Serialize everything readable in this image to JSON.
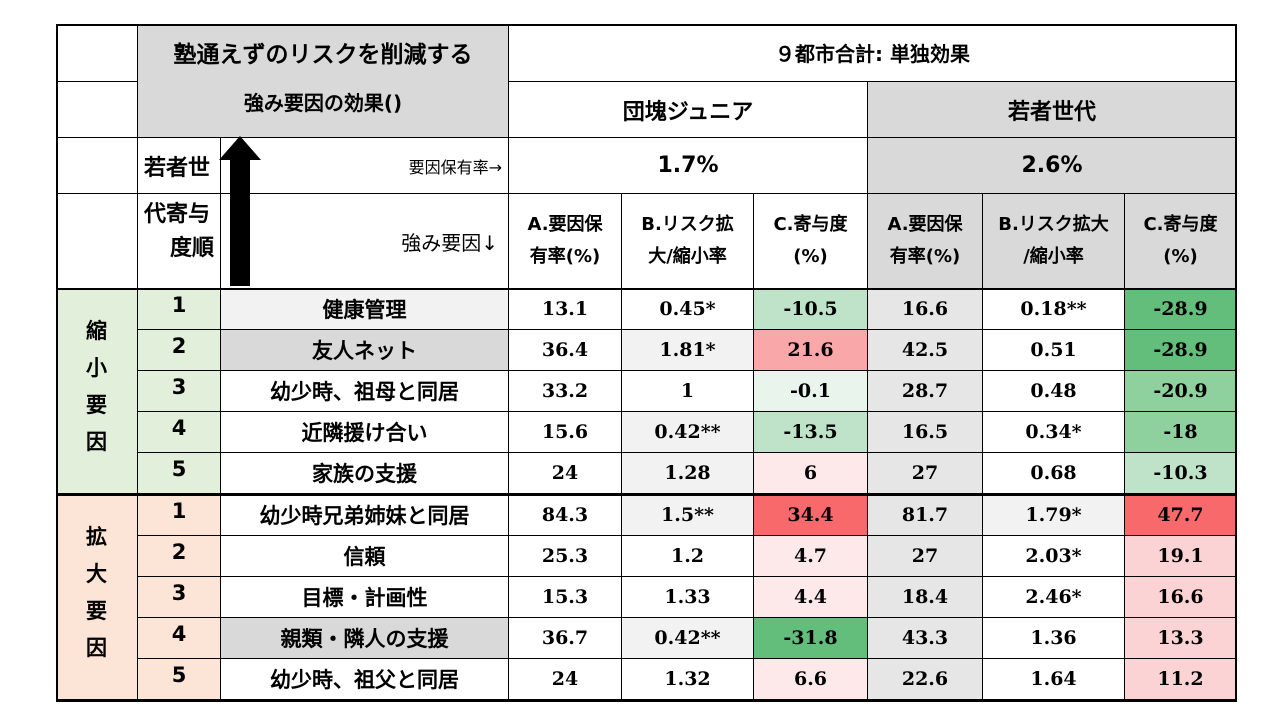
{
  "header": {
    "title_line1": "塾通えずのリスクを削減する",
    "title_line2": "強み要因の効果()",
    "region": "９都市合計: 単独効果",
    "group_a": "団塊ジュニア",
    "group_b": "若者世代",
    "rank_label_top": "若者世",
    "rank_label_bottom": [
      "代寄与",
      "度順"
    ],
    "factor_rate_label": "要因保有率→",
    "strength_label": "強み要因↓",
    "rate_a": "1.7%",
    "rate_b": "2.6%",
    "cols": {
      "a_l1": "A.要因保",
      "a_l2": "有率(%)",
      "b_l1": "B.リスク拡",
      "b_l2": "大/縮小率",
      "c_l1": "C.寄与度",
      "c_l2": "(%)",
      "d_l1": "A.要因保",
      "d_l2": "有率(%)",
      "e_l1": "B.リスク拡大",
      "e_l2": "/縮小率",
      "f_l1": "C.寄与度",
      "f_l2": "(%)"
    }
  },
  "groups": {
    "shrink": [
      "縮",
      "小",
      "要",
      "因"
    ],
    "expand": [
      "拡",
      "大",
      "要",
      "因"
    ]
  },
  "colors": {
    "green_strong": "#63be7b",
    "green_mid": "#8ed09e",
    "green_light": "#bfe3c8",
    "green_pale": "#e9f5ec",
    "red_strong": "#f8696b",
    "red_mid": "#f9a7a8",
    "red_light": "#fbd3d4",
    "red_pale": "#fde9ea",
    "gray": "#d9d9d9"
  },
  "rows": [
    {
      "rank": "1",
      "factor": "健康管理",
      "a1": "13.1",
      "b1": "0.45*",
      "c1": "-10.5",
      "a2": "16.6",
      "b2": "0.18**",
      "c2": "-28.9"
    },
    {
      "rank": "2",
      "factor": "友人ネット",
      "a1": "36.4",
      "b1": "1.81*",
      "c1": "21.6",
      "a2": "42.5",
      "b2": "0.51",
      "c2": "-28.9"
    },
    {
      "rank": "3",
      "factor": "幼少時、祖母と同居",
      "a1": "33.2",
      "b1": "1",
      "c1": "-0.1",
      "a2": "28.7",
      "b2": "0.48",
      "c2": "-20.9"
    },
    {
      "rank": "4",
      "factor": "近隣援け合い",
      "a1": "15.6",
      "b1": "0.42**",
      "c1": "-13.5",
      "a2": "16.5",
      "b2": "0.34*",
      "c2": "-18"
    },
    {
      "rank": "5",
      "factor": "家族の支援",
      "a1": "24",
      "b1": "1.28",
      "c1": "6",
      "a2": "27",
      "b2": "0.68",
      "c2": "-10.3"
    },
    {
      "rank": "1",
      "factor": "幼少時兄弟姉妹と同居",
      "a1": "84.3",
      "b1": "1.5**",
      "c1": "34.4",
      "a2": "81.7",
      "b2": "1.79*",
      "c2": "47.7"
    },
    {
      "rank": "2",
      "factor": "信頼",
      "a1": "25.3",
      "b1": "1.2",
      "c1": "4.7",
      "a2": "27",
      "b2": "2.03*",
      "c2": "19.1"
    },
    {
      "rank": "3",
      "factor": "目標・計画性",
      "a1": "15.3",
      "b1": "1.33",
      "c1": "4.4",
      "a2": "18.4",
      "b2": "2.46*",
      "c2": "16.6"
    },
    {
      "rank": "4",
      "factor": "親類・隣人の支援",
      "a1": "36.7",
      "b1": "0.42**",
      "c1": "-31.8",
      "a2": "43.3",
      "b2": "1.36",
      "c2": "13.3"
    },
    {
      "rank": "5",
      "factor": "幼少時、祖父と同居",
      "a1": "24",
      "b1": "1.32",
      "c1": "6.6",
      "a2": "22.6",
      "b2": "1.64",
      "c2": "11.2"
    }
  ]
}
